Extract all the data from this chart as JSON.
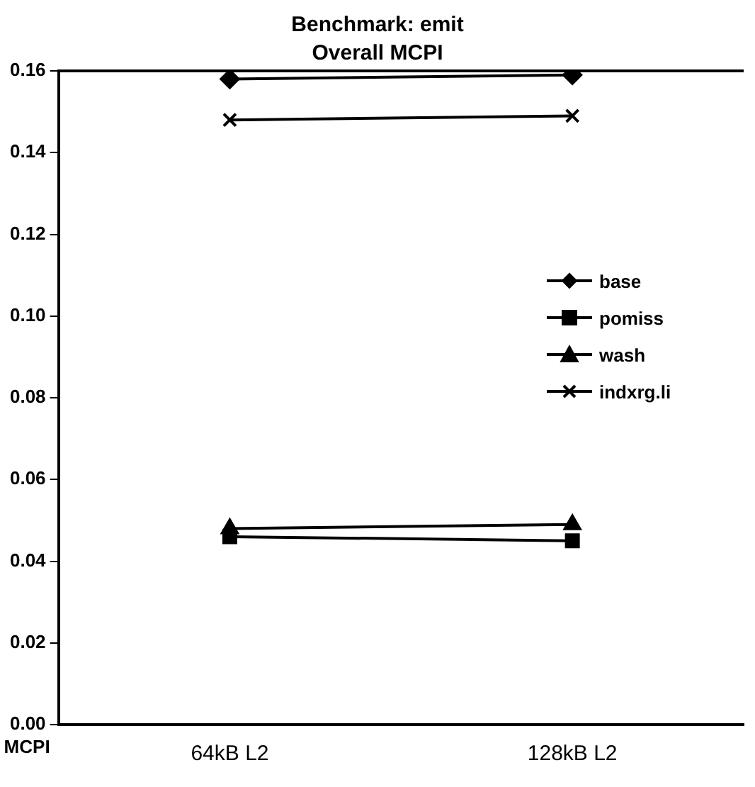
{
  "chart_data": {
    "type": "line",
    "title": "Benchmark: emit",
    "subtitle": "Overall MCPI",
    "xlabel": "MCPI",
    "categories": [
      "64kB L2",
      "128kB L2"
    ],
    "series": [
      {
        "name": "base",
        "color": "#000000",
        "marker": "diamond",
        "values": [
          0.158,
          0.159
        ]
      },
      {
        "name": "pomiss",
        "color": "#000000",
        "marker": "square",
        "values": [
          0.046,
          0.045
        ]
      },
      {
        "name": "wash",
        "color": "#000000",
        "marker": "triangle",
        "values": [
          0.048,
          0.049
        ]
      },
      {
        "name": "indxrg.li",
        "color": "#000000",
        "marker": "cross",
        "values": [
          0.148,
          0.149
        ]
      }
    ],
    "ylim": [
      0,
      0.16
    ],
    "yticks": [
      {
        "value": 0,
        "label": "0.00"
      },
      {
        "value": 0.02,
        "label": "0.02"
      },
      {
        "value": 0.04,
        "label": "0.04"
      },
      {
        "value": 0.06,
        "label": "0.06"
      },
      {
        "value": 0.08,
        "label": "0.08"
      },
      {
        "value": 0.1,
        "label": "0.10"
      },
      {
        "value": 0.12,
        "label": "0.12"
      },
      {
        "value": 0.14,
        "label": "0.14"
      },
      {
        "value": 0.16,
        "label": "0.16"
      }
    ],
    "grid": false,
    "legend": "right",
    "line_style": "solid"
  }
}
